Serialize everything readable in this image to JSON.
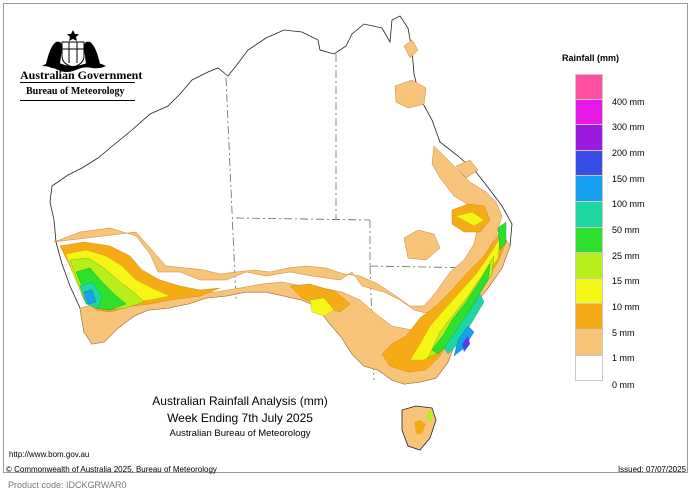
{
  "header": {
    "government": "Australian Government",
    "agency": "Bureau of Meteorology"
  },
  "legend": {
    "title": "Rainfall (mm)",
    "items": [
      {
        "label": "400 mm",
        "color": "#ff4fa0"
      },
      {
        "label": "300 mm",
        "color": "#e818e8"
      },
      {
        "label": "200 mm",
        "color": "#9a1ae0"
      },
      {
        "label": "150 mm",
        "color": "#3a4de6"
      },
      {
        "label": "100 mm",
        "color": "#15a0f0"
      },
      {
        "label": "50 mm",
        "color": "#1ed6a0"
      },
      {
        "label": "25 mm",
        "color": "#2ee02e"
      },
      {
        "label": "15 mm",
        "color": "#b8ee1c"
      },
      {
        "label": "10 mm",
        "color": "#f6f616"
      },
      {
        "label": "5 mm",
        "color": "#f6aa16"
      },
      {
        "label": "1 mm",
        "color": "#f8c47a"
      },
      {
        "label": "0 mm",
        "color": "#ffffff"
      }
    ]
  },
  "titles": {
    "line1": "Australian Rainfall Analysis (mm)",
    "line2": "Week Ending 7th July 2025",
    "line3": "Australian Bureau of Meteorology"
  },
  "footer": {
    "url": "http://www.bom.gov.au",
    "copyright": "© Commonwealth of Australia 2025, Bureau of Meteorology",
    "issued": "Issued: 07/07/2025",
    "product_code": "Product code: IDCKGRWAR0"
  }
}
